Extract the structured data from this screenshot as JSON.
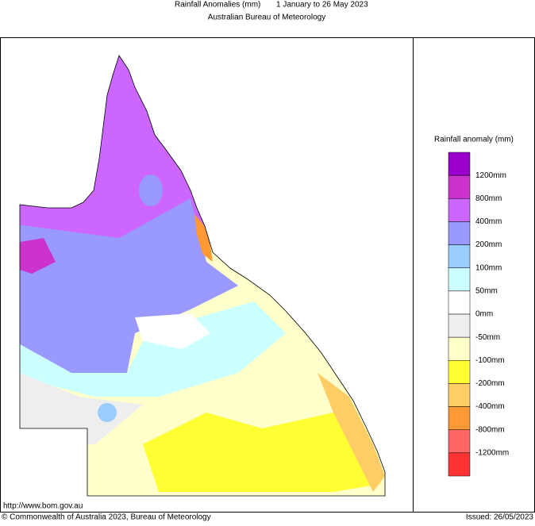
{
  "header": {
    "title": "Rainfall Anomalies (mm)",
    "period": "1 January to 26 May 2023",
    "agency": "Australian Bureau of Meteorology"
  },
  "legend": {
    "title": "Rainfall anomaly (mm)",
    "colors": [
      "#9900cc",
      "#cc33cc",
      "#cc66ff",
      "#9999ff",
      "#99ccff",
      "#ccffff",
      "#ffffff",
      "#eeeeee",
      "#ffffcc",
      "#ffff33",
      "#ffcc66",
      "#ff9933",
      "#ff6666",
      "#ff3333"
    ],
    "labels": [
      "1200mm",
      "800mm",
      "400mm",
      "200mm",
      "100mm",
      "50mm",
      "0mm",
      "-50mm",
      "-100mm",
      "-200mm",
      "-400mm",
      "-800mm",
      "-1200mm"
    ]
  },
  "footer": {
    "url": "http://www.bom.gov.au",
    "copyright": "© Commonwealth of Australia 2023, Bureau of Meteorology",
    "issued": "Issued: 26/05/2023"
  }
}
